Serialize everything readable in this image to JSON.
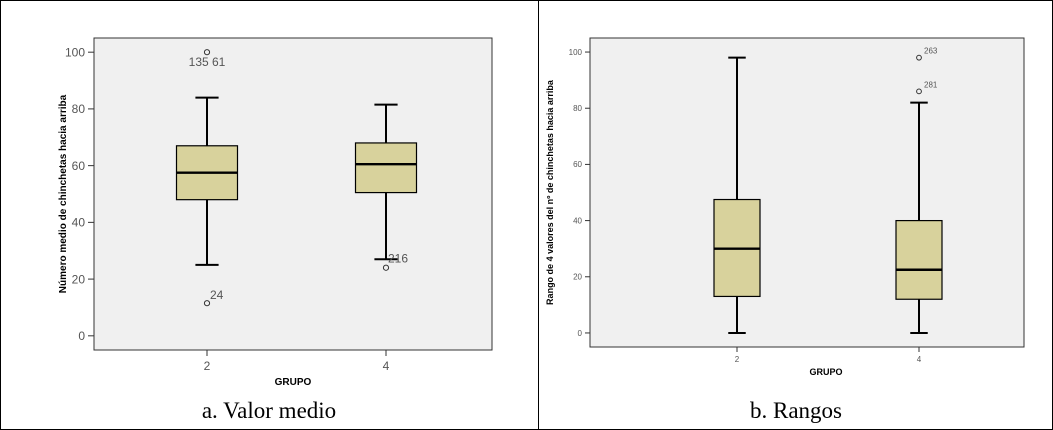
{
  "chart_data": [
    {
      "type": "box",
      "xlabel": "GRUPO",
      "ylabel": "Número medio de chinchetas hacia arriba",
      "ylim": [
        -5,
        105
      ],
      "yticks": [
        0,
        20,
        40,
        60,
        80,
        100
      ],
      "categories": [
        "2",
        "4"
      ],
      "boxes": [
        {
          "category": "2",
          "whisker_low": 25,
          "q1": 48,
          "median": 57.5,
          "q3": 67,
          "whisker_high": 84,
          "outliers": [
            {
              "value": 100,
              "label": "135 61"
            },
            {
              "value": 11.5,
              "label": "24"
            }
          ]
        },
        {
          "category": "4",
          "whisker_low": 27,
          "q1": 50.5,
          "median": 60.5,
          "q3": 68,
          "whisker_high": 81.5,
          "outliers": [
            {
              "value": 24,
              "label": "216"
            }
          ]
        }
      ],
      "grid": false,
      "caption": "a. Valor medio"
    },
    {
      "type": "box",
      "xlabel": "GRUPO",
      "ylabel": "Rango de 4 valores del nº de chinchetas hacia arriba",
      "ylim": [
        -5,
        105
      ],
      "yticks": [
        0,
        20,
        40,
        60,
        80,
        100
      ],
      "categories": [
        "2",
        "4"
      ],
      "boxes": [
        {
          "category": "2",
          "whisker_low": 0,
          "q1": 13,
          "median": 30,
          "q3": 47.5,
          "whisker_high": 98,
          "outliers": []
        },
        {
          "category": "4",
          "whisker_low": 0,
          "q1": 12,
          "median": 22.5,
          "q3": 40,
          "whisker_high": 82,
          "outliers": [
            {
              "value": 98,
              "label": "263"
            },
            {
              "value": 86,
              "label": "281"
            }
          ]
        }
      ],
      "grid": false,
      "caption": "b. Rangos"
    }
  ],
  "colors": {
    "box_fill": "#d8d29c",
    "plot_bg": "#f0f0f0",
    "stroke": "#000000",
    "axis_text": "#555555"
  }
}
